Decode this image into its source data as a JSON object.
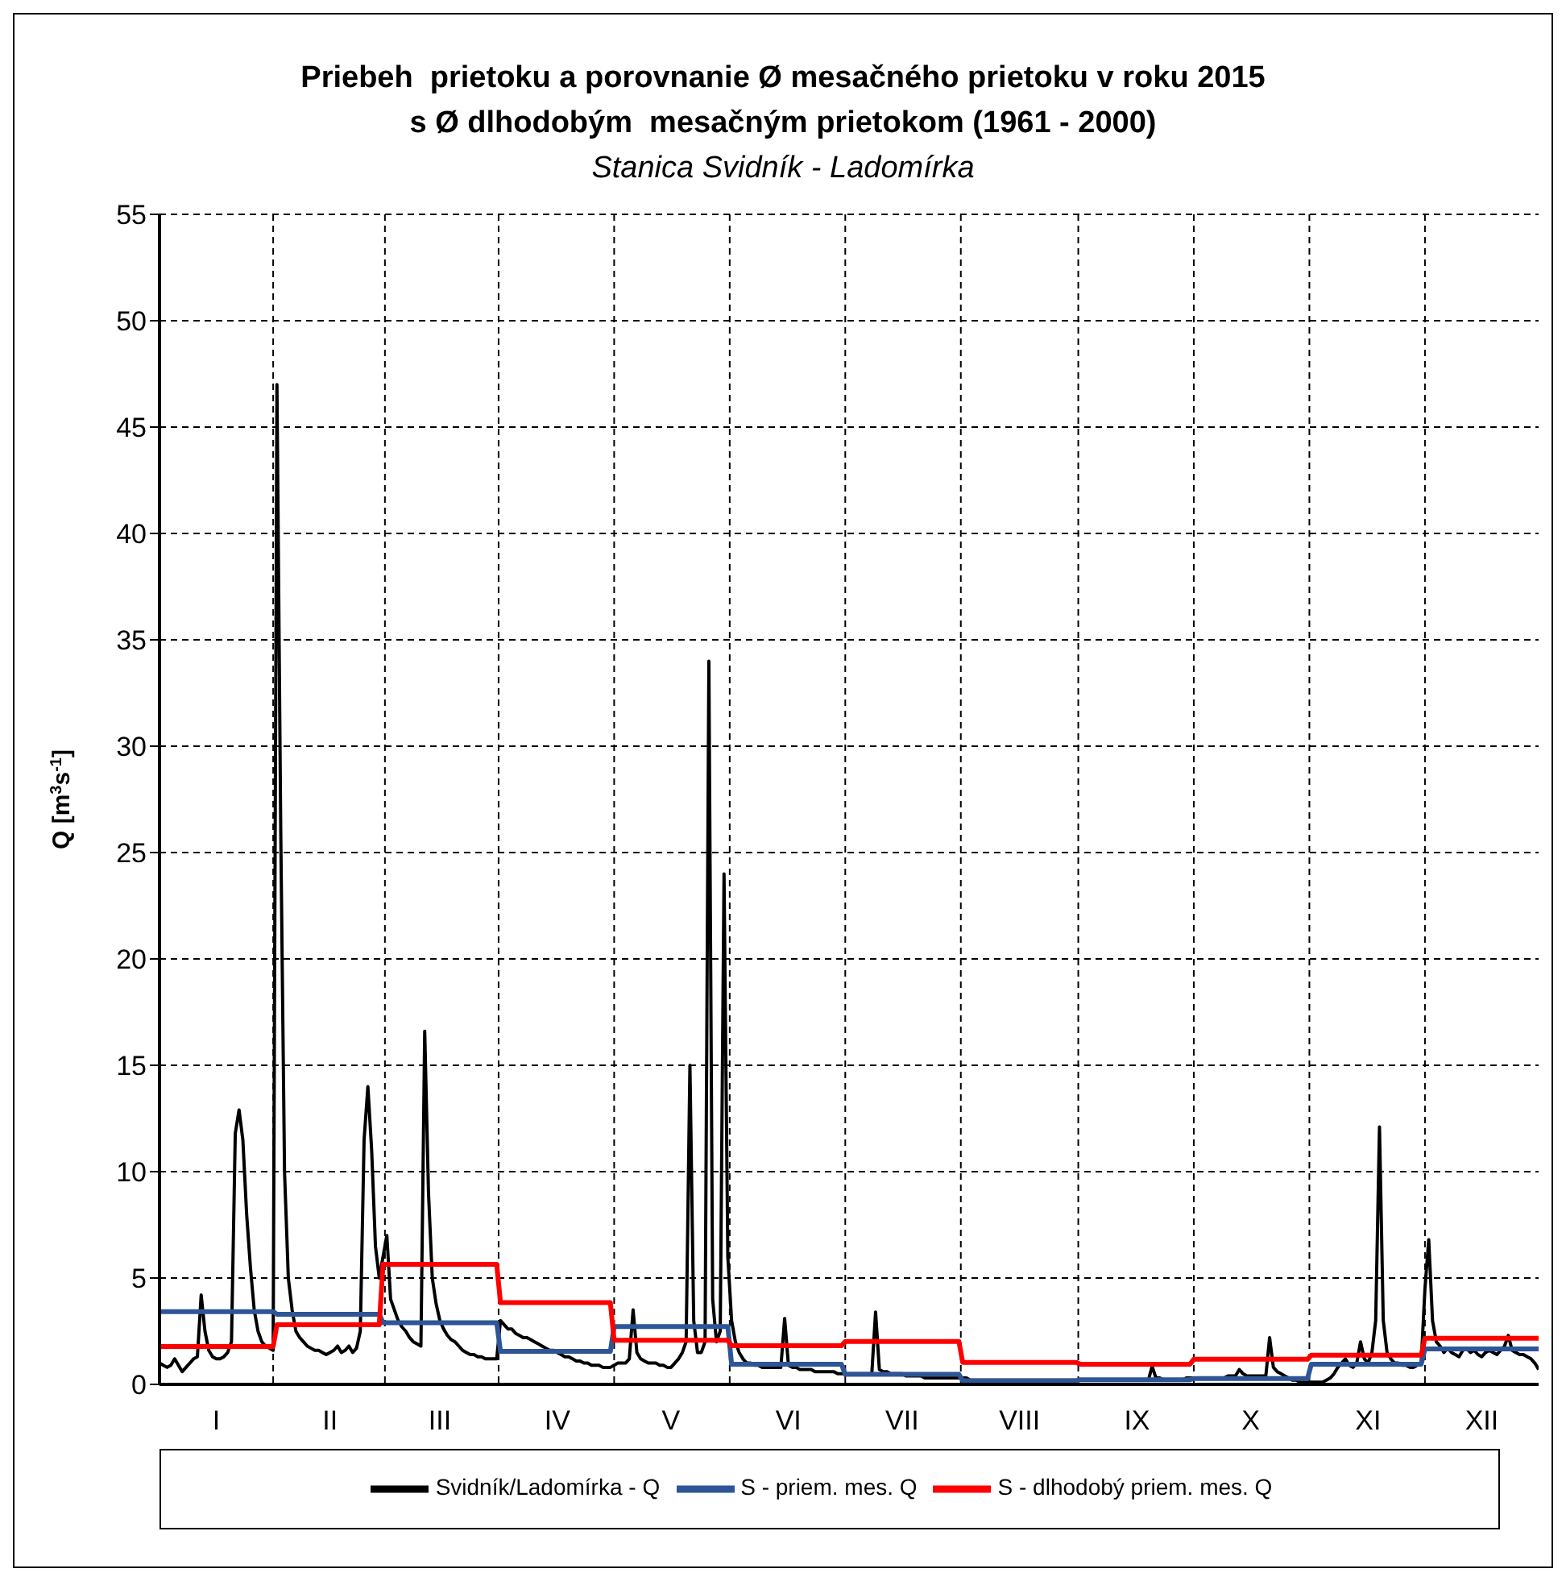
{
  "chart_data": {
    "type": "line",
    "title": "Priebeh  prietoku a porovnanie Ø mesačného prietoku v roku 2015\ns Ø dlhodobým  mesačným prietokom (1961 - 2000)",
    "subtitle": "Stanica Svidník - Ladomírka",
    "ylabel": "Q [m$^{3}$s$^{-1}$]",
    "categories": [
      null,
      null,
      null,
      null,
      null,
      null,
      null,
      null,
      null,
      null,
      null,
      null,
      null,
      null,
      null,
      "I",
      null,
      null,
      null,
      null,
      null,
      null,
      null,
      null,
      null,
      null,
      null,
      null,
      null,
      null,
      null,
      null,
      null,
      null,
      null,
      null,
      null,
      null,
      null,
      null,
      null,
      null,
      null,
      null,
      null,
      "II",
      null,
      null,
      null,
      null,
      null,
      null,
      null,
      null,
      null,
      null,
      null,
      null,
      null,
      null,
      null,
      null,
      null,
      null,
      null,
      null,
      null,
      null,
      null,
      null,
      null,
      null,
      null,
      null,
      "III",
      null,
      null,
      null,
      null,
      null,
      null,
      null,
      null,
      null,
      null,
      null,
      null,
      null,
      null,
      null,
      null,
      null,
      null,
      null,
      null,
      null,
      null,
      null,
      null,
      null,
      null,
      null,
      null,
      null,
      null,
      "IV",
      null,
      null,
      null,
      null,
      null,
      null,
      null,
      null,
      null,
      null,
      null,
      null,
      null,
      null,
      null,
      null,
      null,
      null,
      null,
      null,
      null,
      null,
      null,
      null,
      null,
      null,
      null,
      null,
      null,
      "V",
      null,
      null,
      null,
      null,
      null,
      null,
      null,
      null,
      null,
      null,
      null,
      null,
      null,
      null,
      null,
      null,
      null,
      null,
      null,
      null,
      null,
      null,
      null,
      null,
      null,
      null,
      null,
      null,
      null,
      null,
      "VI",
      null,
      null,
      null,
      null,
      null,
      null,
      null,
      null,
      null,
      null,
      null,
      null,
      null,
      null,
      null,
      null,
      null,
      null,
      null,
      null,
      null,
      null,
      null,
      null,
      null,
      null,
      null,
      null,
      null,
      "VII",
      null,
      null,
      null,
      null,
      null,
      null,
      null,
      null,
      null,
      null,
      null,
      null,
      null,
      null,
      null,
      null,
      null,
      null,
      null,
      null,
      null,
      null,
      null,
      null,
      null,
      null,
      null,
      null,
      null,
      null,
      "VIII",
      null,
      null,
      null,
      null,
      null,
      null,
      null,
      null,
      null,
      null,
      null,
      null,
      null,
      null,
      null,
      null,
      null,
      null,
      null,
      null,
      null,
      null,
      null,
      null,
      null,
      null,
      null,
      null,
      null,
      null,
      "IX",
      null,
      null,
      null,
      null,
      null,
      null,
      null,
      null,
      null,
      null,
      null,
      null,
      null,
      null,
      null,
      null,
      null,
      null,
      null,
      null,
      null,
      null,
      null,
      null,
      null,
      null,
      null,
      null,
      null,
      "X",
      null,
      null,
      null,
      null,
      null,
      null,
      null,
      null,
      null,
      null,
      null,
      null,
      null,
      null,
      null,
      null,
      null,
      null,
      null,
      null,
      null,
      null,
      null,
      null,
      null,
      null,
      null,
      null,
      null,
      null,
      "XI",
      null,
      null,
      null,
      null,
      null,
      null,
      null,
      null,
      null,
      null,
      null,
      null,
      null,
      null,
      null,
      null,
      null,
      null,
      null,
      null,
      null,
      null,
      null,
      null,
      null,
      null,
      null,
      null,
      null,
      "XII",
      null,
      null,
      null,
      null,
      null,
      null,
      null,
      null,
      null,
      null,
      null,
      null,
      null,
      null,
      null
    ],
    "ylim": [
      0,
      55
    ],
    "yticks": [
      0,
      5,
      10,
      15,
      20,
      25,
      30,
      35,
      40,
      45,
      50,
      55
    ],
    "grid": true,
    "legend": "bottom",
    "marker": "none",
    "series": [
      {
        "name": "Svidník/Ladomírka - Q",
        "color": "#000000",
        "values": [
          1.0,
          0.9,
          0.8,
          0.9,
          1.2,
          0.9,
          0.6,
          0.8,
          1.0,
          1.2,
          1.3,
          4.2,
          2.5,
          1.6,
          1.3,
          1.2,
          1.2,
          1.3,
          1.5,
          2.0,
          11.8,
          12.9,
          11.5,
          8.0,
          5.5,
          3.5,
          2.5,
          2.0,
          1.8,
          1.7,
          1.6,
          47.0,
          26.0,
          10.0,
          5.0,
          3.5,
          2.5,
          2.2,
          2.0,
          1.8,
          1.7,
          1.6,
          1.6,
          1.5,
          1.4,
          1.5,
          1.6,
          1.8,
          1.5,
          1.6,
          1.8,
          1.5,
          1.7,
          2.5,
          11.5,
          14.0,
          11.0,
          6.5,
          5.0,
          6.0,
          7.0,
          4.0,
          3.5,
          3.0,
          2.7,
          2.5,
          2.2,
          2.0,
          1.9,
          1.8,
          16.6,
          9.0,
          5.0,
          3.8,
          3.0,
          2.6,
          2.3,
          2.1,
          2.0,
          1.8,
          1.6,
          1.5,
          1.4,
          1.4,
          1.3,
          1.3,
          1.2,
          1.2,
          1.2,
          1.2,
          3.0,
          2.8,
          2.6,
          2.6,
          2.4,
          2.3,
          2.2,
          2.2,
          2.1,
          2.0,
          1.9,
          1.8,
          1.7,
          1.6,
          1.6,
          1.5,
          1.4,
          1.3,
          1.3,
          1.2,
          1.1,
          1.1,
          1.0,
          1.0,
          0.9,
          0.9,
          0.9,
          0.8,
          0.8,
          0.8,
          0.9,
          1.0,
          1.0,
          1.0,
          1.2,
          3.5,
          1.5,
          1.2,
          1.1,
          1.0,
          1.0,
          1.0,
          0.9,
          0.9,
          0.8,
          0.8,
          1.0,
          1.2,
          1.5,
          2.0,
          15.0,
          3.0,
          1.5,
          1.5,
          2.0,
          34.0,
          4.0,
          2.0,
          2.5,
          24.0,
          6.0,
          3.0,
          2.0,
          1.5,
          1.2,
          1.0,
          1.0,
          0.9,
          0.9,
          0.8,
          0.8,
          0.8,
          0.8,
          0.8,
          0.8,
          3.1,
          0.9,
          0.8,
          0.8,
          0.7,
          0.7,
          0.7,
          0.7,
          0.6,
          0.6,
          0.6,
          0.6,
          0.6,
          0.6,
          0.5,
          0.5,
          0.5,
          0.5,
          0.5,
          0.5,
          0.5,
          0.5,
          0.5,
          0.5,
          3.4,
          0.7,
          0.6,
          0.6,
          0.5,
          0.5,
          0.5,
          0.5,
          0.4,
          0.4,
          0.4,
          0.4,
          0.4,
          0.3,
          0.3,
          0.3,
          0.3,
          0.3,
          0.3,
          0.3,
          0.3,
          0.3,
          0.3,
          0.3,
          0.3,
          0.2,
          0.2,
          0.2,
          0.2,
          0.2,
          0.2,
          0.2,
          0.2,
          0.2,
          0.2,
          0.2,
          0.2,
          0.2,
          0.2,
          0.2,
          0.2,
          0.2,
          0.2,
          0.2,
          0.2,
          0.2,
          0.2,
          0.2,
          0.2,
          0.2,
          0.2,
          0.2,
          0.2,
          0.2,
          0.2,
          0.2,
          0.2,
          0.2,
          0.2,
          0.2,
          0.2,
          0.2,
          0.2,
          0.2,
          0.2,
          0.2,
          0.2,
          0.2,
          0.2,
          0.2,
          0.2,
          0.2,
          0.2,
          0.85,
          0.3,
          0.3,
          0.2,
          0.2,
          0.2,
          0.2,
          0.2,
          0.2,
          0.3,
          0.3,
          0.3,
          0.3,
          0.3,
          0.3,
          0.3,
          0.3,
          0.3,
          0.3,
          0.3,
          0.4,
          0.4,
          0.4,
          0.7,
          0.5,
          0.4,
          0.4,
          0.4,
          0.4,
          0.4,
          0.4,
          2.2,
          0.8,
          0.6,
          0.5,
          0.4,
          0.3,
          0.2,
          0.2,
          0.1,
          0.1,
          0.1,
          0.1,
          0.1,
          0.1,
          0.1,
          0.2,
          0.3,
          0.5,
          0.8,
          1.0,
          1.2,
          0.9,
          0.8,
          1.0,
          2.0,
          1.2,
          1.0,
          1.5,
          3.0,
          12.1,
          3.0,
          1.5,
          1.2,
          1.0,
          1.0,
          0.9,
          0.9,
          0.8,
          0.8,
          0.9,
          1.0,
          4.5,
          6.8,
          3.0,
          2.0,
          1.8,
          1.5,
          1.7,
          1.5,
          1.4,
          1.3,
          1.6,
          1.7,
          1.5,
          1.6,
          1.4,
          1.3,
          1.5,
          1.6,
          1.5,
          1.4,
          1.6,
          1.8,
          2.3,
          1.6,
          1.5,
          1.4,
          1.4,
          1.3,
          1.2,
          1.0,
          0.7
        ]
      },
      {
        "name": "S - priem. mes. Q",
        "color": "#2e5597",
        "values": [
          3.42,
          3.42,
          3.42,
          3.42,
          3.42,
          3.42,
          3.42,
          3.42,
          3.42,
          3.42,
          3.42,
          3.42,
          3.42,
          3.42,
          3.42,
          3.42,
          3.42,
          3.42,
          3.42,
          3.42,
          3.42,
          3.42,
          3.42,
          3.42,
          3.42,
          3.42,
          3.42,
          3.42,
          3.42,
          3.42,
          3.42,
          3.3,
          3.3,
          3.3,
          3.3,
          3.3,
          3.3,
          3.3,
          3.3,
          3.3,
          3.3,
          3.3,
          3.3,
          3.3,
          3.3,
          3.3,
          3.3,
          3.3,
          3.3,
          3.3,
          3.3,
          3.3,
          3.3,
          3.3,
          3.3,
          3.3,
          3.3,
          3.3,
          3.3,
          2.9,
          2.9,
          2.9,
          2.9,
          2.9,
          2.9,
          2.9,
          2.9,
          2.9,
          2.9,
          2.9,
          2.9,
          2.9,
          2.9,
          2.9,
          2.9,
          2.9,
          2.9,
          2.9,
          2.9,
          2.9,
          2.9,
          2.9,
          2.9,
          2.9,
          2.9,
          2.9,
          2.9,
          2.9,
          2.9,
          2.9,
          1.55,
          1.55,
          1.55,
          1.55,
          1.55,
          1.55,
          1.55,
          1.55,
          1.55,
          1.55,
          1.55,
          1.55,
          1.55,
          1.55,
          1.55,
          1.55,
          1.55,
          1.55,
          1.55,
          1.55,
          1.55,
          1.55,
          1.55,
          1.55,
          1.55,
          1.55,
          1.55,
          1.55,
          1.55,
          1.55,
          2.72,
          2.72,
          2.72,
          2.72,
          2.72,
          2.72,
          2.72,
          2.72,
          2.72,
          2.72,
          2.72,
          2.72,
          2.72,
          2.72,
          2.72,
          2.72,
          2.72,
          2.72,
          2.72,
          2.72,
          2.72,
          2.72,
          2.72,
          2.72,
          2.72,
          2.72,
          2.72,
          2.72,
          2.72,
          2.72,
          2.72,
          0.95,
          0.95,
          0.95,
          0.95,
          0.95,
          0.95,
          0.95,
          0.95,
          0.95,
          0.95,
          0.95,
          0.95,
          0.95,
          0.95,
          0.95,
          0.95,
          0.95,
          0.95,
          0.95,
          0.95,
          0.95,
          0.95,
          0.95,
          0.95,
          0.95,
          0.95,
          0.95,
          0.95,
          0.95,
          0.95,
          0.47,
          0.47,
          0.47,
          0.47,
          0.47,
          0.47,
          0.47,
          0.47,
          0.47,
          0.47,
          0.47,
          0.47,
          0.47,
          0.47,
          0.47,
          0.47,
          0.47,
          0.47,
          0.47,
          0.47,
          0.47,
          0.47,
          0.47,
          0.47,
          0.47,
          0.47,
          0.47,
          0.47,
          0.47,
          0.47,
          0.47,
          0.17,
          0.17,
          0.17,
          0.17,
          0.17,
          0.17,
          0.17,
          0.17,
          0.17,
          0.17,
          0.17,
          0.17,
          0.17,
          0.17,
          0.17,
          0.17,
          0.17,
          0.17,
          0.17,
          0.17,
          0.17,
          0.17,
          0.17,
          0.17,
          0.17,
          0.17,
          0.17,
          0.17,
          0.17,
          0.17,
          0.17,
          0.22,
          0.22,
          0.22,
          0.22,
          0.22,
          0.22,
          0.22,
          0.22,
          0.22,
          0.22,
          0.22,
          0.22,
          0.22,
          0.22,
          0.22,
          0.22,
          0.22,
          0.22,
          0.22,
          0.22,
          0.22,
          0.22,
          0.22,
          0.22,
          0.22,
          0.22,
          0.22,
          0.22,
          0.22,
          0.22,
          0.27,
          0.27,
          0.27,
          0.27,
          0.27,
          0.27,
          0.27,
          0.27,
          0.27,
          0.27,
          0.27,
          0.27,
          0.27,
          0.27,
          0.27,
          0.27,
          0.27,
          0.27,
          0.27,
          0.27,
          0.27,
          0.27,
          0.27,
          0.27,
          0.27,
          0.27,
          0.27,
          0.27,
          0.27,
          0.27,
          0.27,
          0.95,
          0.95,
          0.95,
          0.95,
          0.95,
          0.95,
          0.95,
          0.95,
          0.95,
          0.95,
          0.95,
          0.95,
          0.95,
          0.95,
          0.95,
          0.95,
          0.95,
          0.95,
          0.95,
          0.95,
          0.95,
          0.95,
          0.95,
          0.95,
          0.95,
          0.95,
          0.95,
          0.95,
          0.95,
          0.95,
          1.67,
          1.67,
          1.67,
          1.67,
          1.67,
          1.67,
          1.67,
          1.67,
          1.67,
          1.67,
          1.67,
          1.67,
          1.67,
          1.67,
          1.67,
          1.67,
          1.67,
          1.67,
          1.67,
          1.67,
          1.67,
          1.67,
          1.67,
          1.67,
          1.67,
          1.67,
          1.67,
          1.67,
          1.67,
          1.67,
          1.67
        ]
      },
      {
        "name": "S - dlhodobý priem. mes. Q",
        "color": "#ff0000",
        "values": [
          1.78,
          1.78,
          1.78,
          1.78,
          1.78,
          1.78,
          1.78,
          1.78,
          1.78,
          1.78,
          1.78,
          1.78,
          1.78,
          1.78,
          1.78,
          1.78,
          1.78,
          1.78,
          1.78,
          1.78,
          1.78,
          1.78,
          1.78,
          1.78,
          1.78,
          1.78,
          1.78,
          1.78,
          1.78,
          1.78,
          1.78,
          2.8,
          2.8,
          2.8,
          2.8,
          2.8,
          2.8,
          2.8,
          2.8,
          2.8,
          2.8,
          2.8,
          2.8,
          2.8,
          2.8,
          2.8,
          2.8,
          2.8,
          2.8,
          2.8,
          2.8,
          2.8,
          2.8,
          2.8,
          2.8,
          2.8,
          2.8,
          2.8,
          2.8,
          5.64,
          5.64,
          5.64,
          5.64,
          5.64,
          5.64,
          5.64,
          5.64,
          5.64,
          5.64,
          5.64,
          5.64,
          5.64,
          5.64,
          5.64,
          5.64,
          5.64,
          5.64,
          5.64,
          5.64,
          5.64,
          5.64,
          5.64,
          5.64,
          5.64,
          5.64,
          5.64,
          5.64,
          5.64,
          5.64,
          5.64,
          3.84,
          3.84,
          3.84,
          3.84,
          3.84,
          3.84,
          3.84,
          3.84,
          3.84,
          3.84,
          3.84,
          3.84,
          3.84,
          3.84,
          3.84,
          3.84,
          3.84,
          3.84,
          3.84,
          3.84,
          3.84,
          3.84,
          3.84,
          3.84,
          3.84,
          3.84,
          3.84,
          3.84,
          3.84,
          3.84,
          2.07,
          2.07,
          2.07,
          2.07,
          2.07,
          2.07,
          2.07,
          2.07,
          2.07,
          2.07,
          2.07,
          2.07,
          2.07,
          2.07,
          2.07,
          2.07,
          2.07,
          2.07,
          2.07,
          2.07,
          2.07,
          2.07,
          2.07,
          2.07,
          2.07,
          2.07,
          2.07,
          2.07,
          2.07,
          2.07,
          2.07,
          1.82,
          1.82,
          1.82,
          1.82,
          1.82,
          1.82,
          1.82,
          1.82,
          1.82,
          1.82,
          1.82,
          1.82,
          1.82,
          1.82,
          1.82,
          1.82,
          1.82,
          1.82,
          1.82,
          1.82,
          1.82,
          1.82,
          1.82,
          1.82,
          1.82,
          1.82,
          1.82,
          1.82,
          1.82,
          1.82,
          2.02,
          2.02,
          2.02,
          2.02,
          2.02,
          2.02,
          2.02,
          2.02,
          2.02,
          2.02,
          2.02,
          2.02,
          2.02,
          2.02,
          2.02,
          2.02,
          2.02,
          2.02,
          2.02,
          2.02,
          2.02,
          2.02,
          2.02,
          2.02,
          2.02,
          2.02,
          2.02,
          2.02,
          2.02,
          2.02,
          2.02,
          1.03,
          1.03,
          1.03,
          1.03,
          1.03,
          1.03,
          1.03,
          1.03,
          1.03,
          1.03,
          1.03,
          1.03,
          1.03,
          1.03,
          1.03,
          1.03,
          1.03,
          1.03,
          1.03,
          1.03,
          1.03,
          1.03,
          1.03,
          1.03,
          1.03,
          1.03,
          1.03,
          1.03,
          1.03,
          1.03,
          1.03,
          0.95,
          0.95,
          0.95,
          0.95,
          0.95,
          0.95,
          0.95,
          0.95,
          0.95,
          0.95,
          0.95,
          0.95,
          0.95,
          0.95,
          0.95,
          0.95,
          0.95,
          0.95,
          0.95,
          0.95,
          0.95,
          0.95,
          0.95,
          0.95,
          0.95,
          0.95,
          0.95,
          0.95,
          0.95,
          0.95,
          1.18,
          1.18,
          1.18,
          1.18,
          1.18,
          1.18,
          1.18,
          1.18,
          1.18,
          1.18,
          1.18,
          1.18,
          1.18,
          1.18,
          1.18,
          1.18,
          1.18,
          1.18,
          1.18,
          1.18,
          1.18,
          1.18,
          1.18,
          1.18,
          1.18,
          1.18,
          1.18,
          1.18,
          1.18,
          1.18,
          1.18,
          1.37,
          1.37,
          1.37,
          1.37,
          1.37,
          1.37,
          1.37,
          1.37,
          1.37,
          1.37,
          1.37,
          1.37,
          1.37,
          1.37,
          1.37,
          1.37,
          1.37,
          1.37,
          1.37,
          1.37,
          1.37,
          1.37,
          1.37,
          1.37,
          1.37,
          1.37,
          1.37,
          1.37,
          1.37,
          1.37,
          2.17,
          2.17,
          2.17,
          2.17,
          2.17,
          2.17,
          2.17,
          2.17,
          2.17,
          2.17,
          2.17,
          2.17,
          2.17,
          2.17,
          2.17,
          2.17,
          2.17,
          2.17,
          2.17,
          2.17,
          2.17,
          2.17,
          2.17,
          2.17,
          2.17,
          2.17,
          2.17,
          2.17,
          2.17,
          2.17,
          2.17
        ]
      }
    ]
  }
}
